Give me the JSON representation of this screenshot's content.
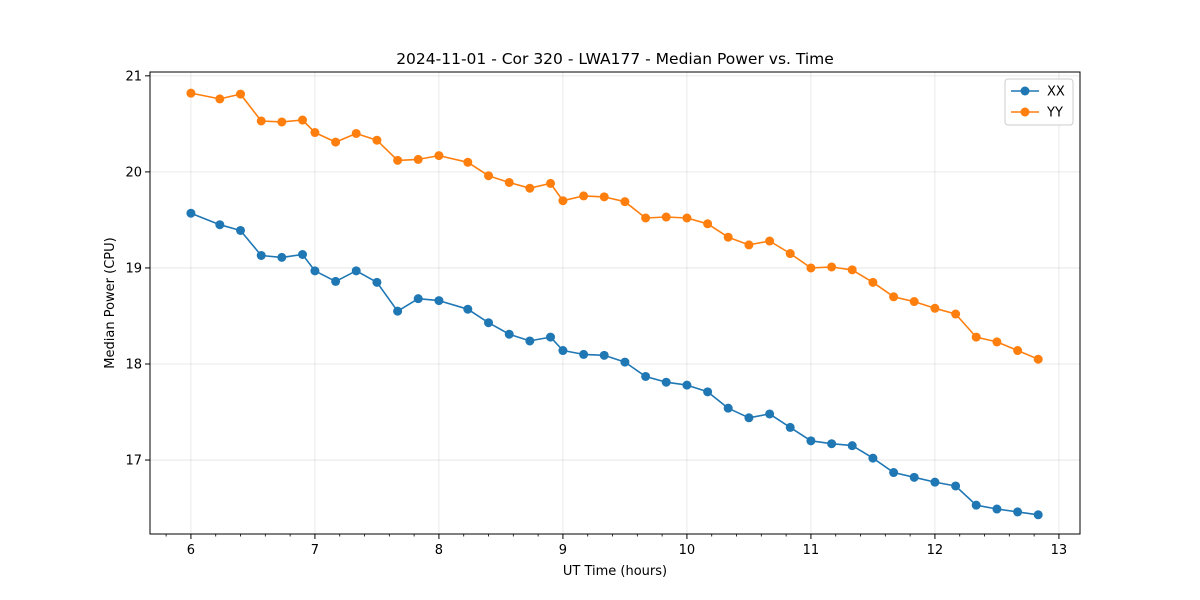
{
  "chart_data": {
    "type": "line",
    "title": "2024-11-01 - Cor 320 - LWA177 - Median Power vs. Time",
    "xlabel": "UT Time (hours)",
    "ylabel": "Median Power (CPU)",
    "xlim": [
      5.67,
      13.17
    ],
    "ylim": [
      16.23,
      21.04
    ],
    "x_ticks": [
      6,
      7,
      8,
      9,
      10,
      11,
      12,
      13
    ],
    "y_ticks": [
      17,
      18,
      19,
      20,
      21
    ],
    "grid": true,
    "legend_position": "top-right",
    "x": [
      6.0,
      6.233,
      6.4,
      6.567,
      6.733,
      6.9,
      7.0,
      7.167,
      7.333,
      7.5,
      7.667,
      7.833,
      8.0,
      8.233,
      8.4,
      8.567,
      8.733,
      8.9,
      9.0,
      9.167,
      9.333,
      9.5,
      9.667,
      9.833,
      10.0,
      10.167,
      10.333,
      10.5,
      10.667,
      10.833,
      11.0,
      11.167,
      11.333,
      11.5,
      11.667,
      11.833,
      12.0,
      12.167,
      12.333,
      12.5,
      12.667,
      12.833
    ],
    "series": [
      {
        "name": "XX",
        "color": "#1f77b4",
        "values": [
          19.57,
          19.45,
          19.39,
          19.13,
          19.11,
          19.14,
          18.97,
          18.86,
          18.97,
          18.85,
          18.55,
          18.68,
          18.66,
          18.57,
          18.43,
          18.31,
          18.24,
          18.28,
          18.14,
          18.1,
          18.09,
          18.02,
          17.87,
          17.81,
          17.78,
          17.71,
          17.54,
          17.44,
          17.48,
          17.34,
          17.2,
          17.17,
          17.15,
          17.02,
          16.87,
          16.82,
          16.77,
          16.73,
          16.53,
          16.49,
          16.46,
          16.43
        ]
      },
      {
        "name": "YY",
        "color": "#ff7f0e",
        "values": [
          20.82,
          20.76,
          20.81,
          20.53,
          20.52,
          20.54,
          20.41,
          20.31,
          20.4,
          20.33,
          20.12,
          20.13,
          20.17,
          20.1,
          19.96,
          19.89,
          19.83,
          19.88,
          19.7,
          19.75,
          19.74,
          19.69,
          19.52,
          19.53,
          19.52,
          19.46,
          19.32,
          19.24,
          19.28,
          19.15,
          19.0,
          19.01,
          18.98,
          18.85,
          18.7,
          18.65,
          18.58,
          18.52,
          18.28,
          18.23,
          18.14,
          18.05
        ]
      }
    ]
  }
}
